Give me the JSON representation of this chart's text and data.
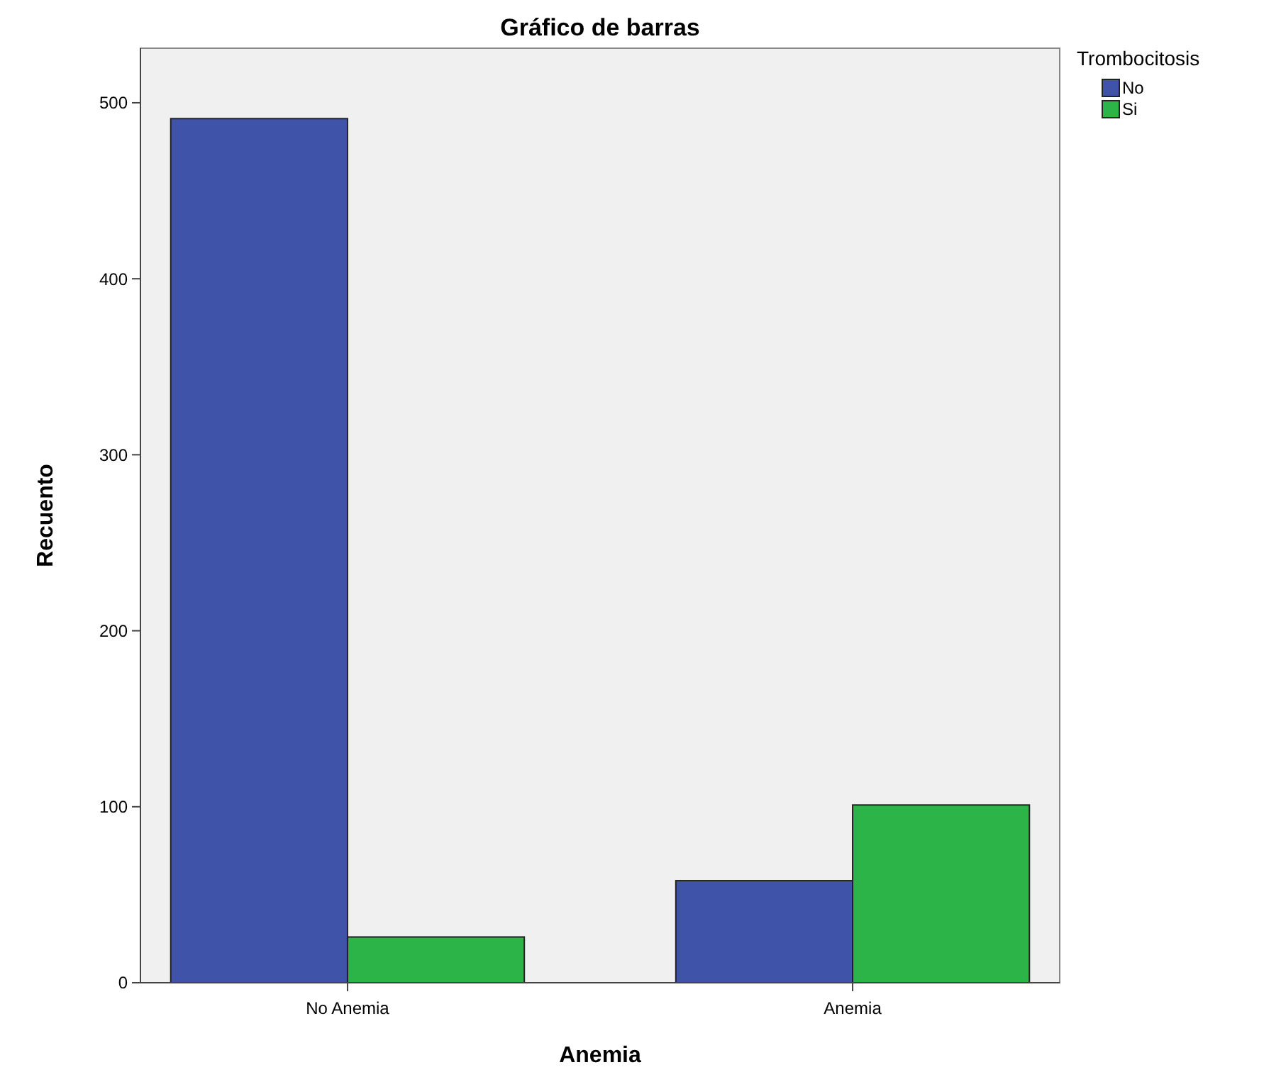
{
  "chart_data": {
    "type": "bar",
    "title": "Gráfico de barras",
    "xlabel": "Anemia",
    "ylabel": "Recuento",
    "legend_title": "Trombocitosis",
    "categories": [
      "No Anemia",
      "Anemia"
    ],
    "series": [
      {
        "name": "No",
        "color": "#3f53a8",
        "values": [
          491,
          58
        ]
      },
      {
        "name": "Si",
        "color": "#2db448",
        "values": [
          26,
          101
        ]
      }
    ],
    "ylim": [
      0,
      531
    ],
    "yticks": [
      0,
      100,
      200,
      300,
      400,
      500
    ],
    "legend": "top right",
    "grid": false
  }
}
